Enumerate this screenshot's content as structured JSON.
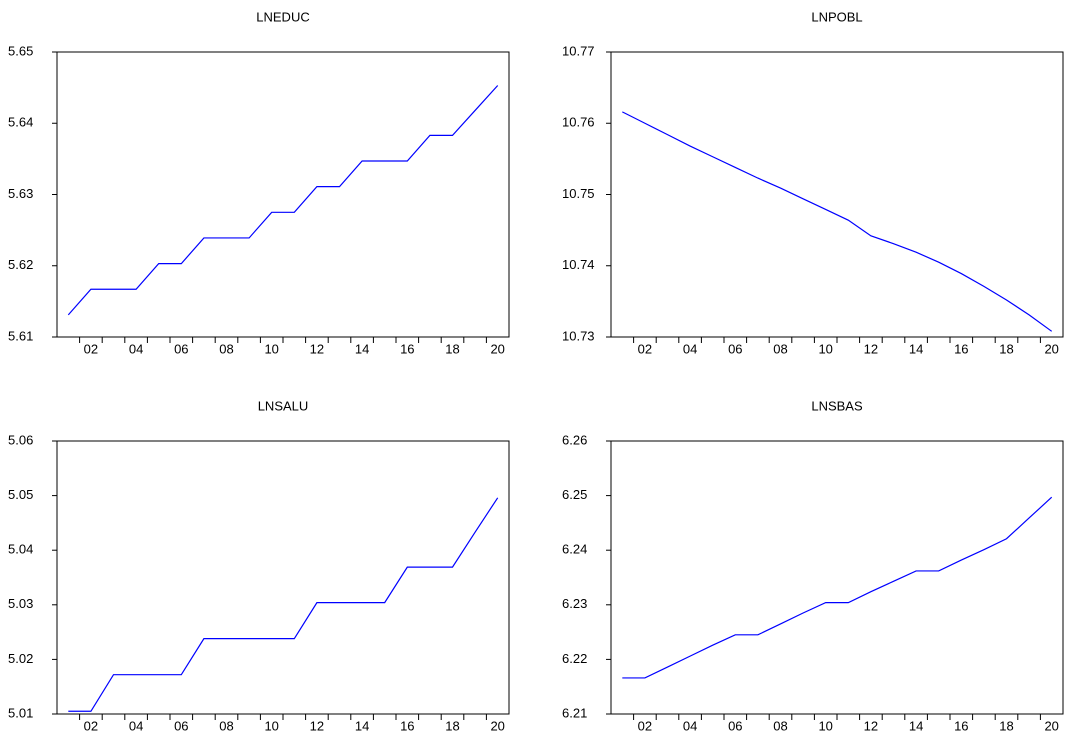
{
  "chart_data": [
    {
      "type": "line",
      "title": "LNEDUC",
      "color": "#0000ff",
      "categories": [
        null,
        "02",
        null,
        "04",
        null,
        "06",
        null,
        "08",
        null,
        "10",
        null,
        "12",
        null,
        "14",
        null,
        "16",
        null,
        "18",
        null,
        "20"
      ],
      "values": [
        5.6131,
        5.6167,
        5.6167,
        5.6167,
        5.6203,
        5.6203,
        5.6239,
        5.6239,
        5.6239,
        5.6275,
        5.6275,
        5.6311,
        5.6311,
        5.6347,
        5.6347,
        5.6347,
        5.6383,
        5.6383,
        5.6418,
        5.6453
      ],
      "ylim": [
        5.61,
        5.65
      ],
      "yticks": [
        5.61,
        5.62,
        5.63,
        5.64,
        5.65
      ]
    },
    {
      "type": "line",
      "title": "LNPOBL",
      "color": "#0000ff",
      "categories": [
        null,
        "02",
        null,
        "04",
        null,
        "06",
        null,
        "08",
        null,
        "10",
        null,
        "12",
        null,
        "14",
        null,
        "16",
        null,
        "18",
        null,
        "20"
      ],
      "values": [
        10.7616,
        10.76,
        10.7584,
        10.7568,
        10.7553,
        10.7538,
        10.7523,
        10.7509,
        10.7494,
        10.7479,
        10.7464,
        10.7442,
        10.7431,
        10.7419,
        10.7405,
        10.7389,
        10.7371,
        10.7352,
        10.7331,
        10.7308
      ],
      "ylim": [
        10.73,
        10.77
      ],
      "yticks": [
        10.73,
        10.74,
        10.75,
        10.76,
        10.77
      ]
    },
    {
      "type": "line",
      "title": "LNSALU",
      "color": "#0000ff",
      "categories": [
        null,
        "02",
        null,
        "04",
        null,
        "06",
        null,
        "08",
        null,
        "10",
        null,
        "12",
        null,
        "14",
        null,
        "16",
        null,
        "18",
        null,
        "20"
      ],
      "values": [
        5.0105,
        5.0105,
        5.0172,
        5.0172,
        5.0172,
        5.0172,
        5.0238,
        5.0238,
        5.0238,
        5.0238,
        5.0238,
        5.0304,
        5.0304,
        5.0304,
        5.0304,
        5.0369,
        5.0369,
        5.0369,
        5.0433,
        5.0496
      ],
      "ylim": [
        5.01,
        5.06
      ],
      "yticks": [
        5.01,
        5.02,
        5.03,
        5.04,
        5.05,
        5.06
      ]
    },
    {
      "type": "line",
      "title": "LNSBAS",
      "color": "#0000ff",
      "categories": [
        null,
        "02",
        null,
        "04",
        null,
        "06",
        null,
        "08",
        null,
        "10",
        null,
        "12",
        null,
        "14",
        null,
        "16",
        null,
        "18",
        null,
        "20"
      ],
      "values": [
        6.2166,
        6.2166,
        6.2186,
        6.2206,
        6.2226,
        6.2245,
        6.2245,
        6.2265,
        6.2285,
        6.2304,
        6.2304,
        6.2324,
        6.2343,
        6.2362,
        6.2362,
        6.2382,
        6.2401,
        6.2421,
        6.2459,
        6.2497
      ],
      "ylim": [
        6.21,
        6.26
      ],
      "yticks": [
        6.21,
        6.22,
        6.23,
        6.24,
        6.25,
        6.26
      ]
    }
  ]
}
